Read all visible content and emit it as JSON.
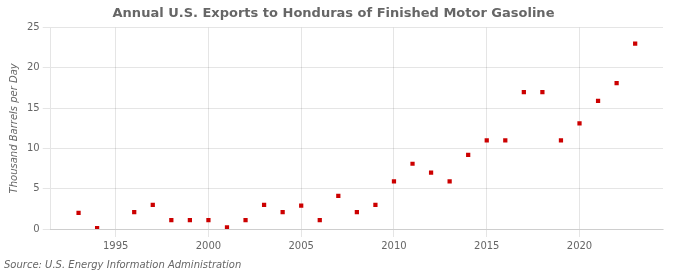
{
  "chart_data": {
    "type": "scatter",
    "title": "Annual U.S. Exports to Honduras of Finished Motor Gasoline",
    "ylabel": "Thousand Barrels per Day",
    "source": "Source: U.S. Energy Information Administration",
    "x": [
      1993,
      1994,
      1996,
      1997,
      1998,
      1999,
      2000,
      2001,
      2002,
      2003,
      2004,
      2005,
      2006,
      2007,
      2008,
      2009,
      2010,
      2011,
      2012,
      2013,
      2014,
      2015,
      2016,
      2017,
      2018,
      2019,
      2020,
      2021,
      2022,
      2023
    ],
    "values": [
      2.0,
      0.1,
      2.1,
      3.0,
      1.1,
      1.1,
      1.1,
      0.2,
      1.1,
      3.0,
      2.1,
      2.9,
      1.1,
      4.1,
      2.1,
      3.0,
      5.9,
      8.1,
      7.0,
      5.9,
      9.2,
      11.0,
      11.0,
      17.0,
      17.0,
      11.0,
      13.1,
      15.9,
      18.1,
      23.0
    ],
    "color": "#cc0000",
    "marker": "square",
    "xlim": [
      1991.5,
      2024.5
    ],
    "ylim": [
      0,
      25
    ],
    "xticks": [
      1995,
      2000,
      2005,
      2010,
      2015,
      2020
    ],
    "yticks": [
      0,
      5,
      10,
      15,
      20,
      25
    ],
    "grid": true
  }
}
